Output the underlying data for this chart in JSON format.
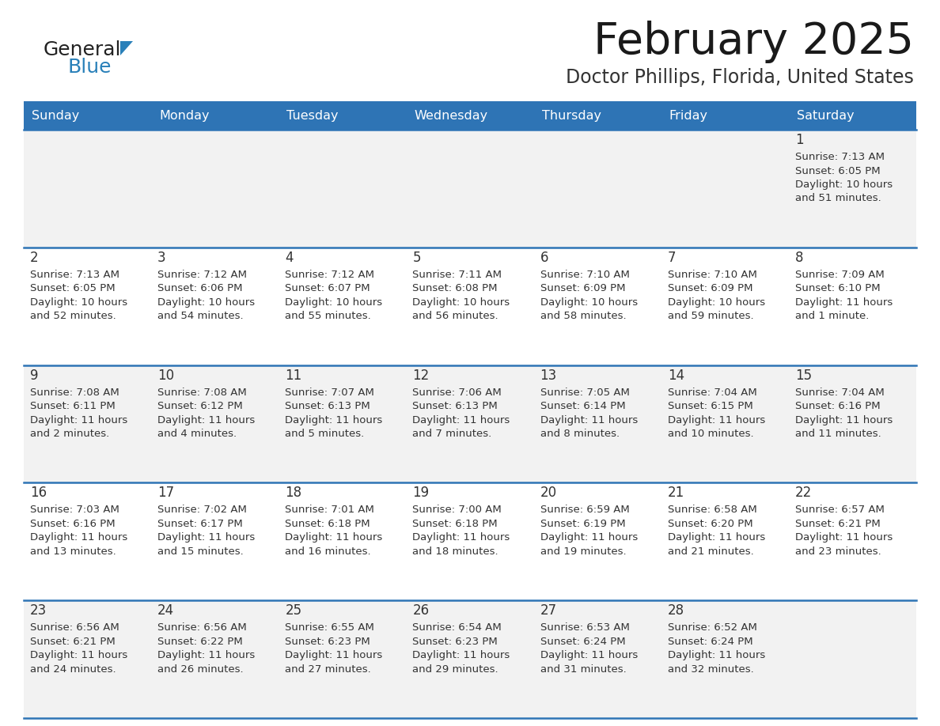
{
  "title": "February 2025",
  "subtitle": "Doctor Phillips, Florida, United States",
  "header_color": "#2E74B5",
  "header_text_color": "#FFFFFF",
  "row_bg_even": "#F2F2F2",
  "row_bg_odd": "#FFFFFF",
  "border_color": "#2E74B5",
  "text_color": "#333333",
  "days_of_week": [
    "Sunday",
    "Monday",
    "Tuesday",
    "Wednesday",
    "Thursday",
    "Friday",
    "Saturday"
  ],
  "logo_color1": "#222222",
  "logo_color2": "#2980B9",
  "calendar_data": [
    [
      null,
      null,
      null,
      null,
      null,
      null,
      {
        "day": "1",
        "sunrise": "7:13 AM",
        "sunset": "6:05 PM",
        "daylight": "10 hours\nand 51 minutes."
      }
    ],
    [
      {
        "day": "2",
        "sunrise": "7:13 AM",
        "sunset": "6:05 PM",
        "daylight": "10 hours\nand 52 minutes."
      },
      {
        "day": "3",
        "sunrise": "7:12 AM",
        "sunset": "6:06 PM",
        "daylight": "10 hours\nand 54 minutes."
      },
      {
        "day": "4",
        "sunrise": "7:12 AM",
        "sunset": "6:07 PM",
        "daylight": "10 hours\nand 55 minutes."
      },
      {
        "day": "5",
        "sunrise": "7:11 AM",
        "sunset": "6:08 PM",
        "daylight": "10 hours\nand 56 minutes."
      },
      {
        "day": "6",
        "sunrise": "7:10 AM",
        "sunset": "6:09 PM",
        "daylight": "10 hours\nand 58 minutes."
      },
      {
        "day": "7",
        "sunrise": "7:10 AM",
        "sunset": "6:09 PM",
        "daylight": "10 hours\nand 59 minutes."
      },
      {
        "day": "8",
        "sunrise": "7:09 AM",
        "sunset": "6:10 PM",
        "daylight": "11 hours\nand 1 minute."
      }
    ],
    [
      {
        "day": "9",
        "sunrise": "7:08 AM",
        "sunset": "6:11 PM",
        "daylight": "11 hours\nand 2 minutes."
      },
      {
        "day": "10",
        "sunrise": "7:08 AM",
        "sunset": "6:12 PM",
        "daylight": "11 hours\nand 4 minutes."
      },
      {
        "day": "11",
        "sunrise": "7:07 AM",
        "sunset": "6:13 PM",
        "daylight": "11 hours\nand 5 minutes."
      },
      {
        "day": "12",
        "sunrise": "7:06 AM",
        "sunset": "6:13 PM",
        "daylight": "11 hours\nand 7 minutes."
      },
      {
        "day": "13",
        "sunrise": "7:05 AM",
        "sunset": "6:14 PM",
        "daylight": "11 hours\nand 8 minutes."
      },
      {
        "day": "14",
        "sunrise": "7:04 AM",
        "sunset": "6:15 PM",
        "daylight": "11 hours\nand 10 minutes."
      },
      {
        "day": "15",
        "sunrise": "7:04 AM",
        "sunset": "6:16 PM",
        "daylight": "11 hours\nand 11 minutes."
      }
    ],
    [
      {
        "day": "16",
        "sunrise": "7:03 AM",
        "sunset": "6:16 PM",
        "daylight": "11 hours\nand 13 minutes."
      },
      {
        "day": "17",
        "sunrise": "7:02 AM",
        "sunset": "6:17 PM",
        "daylight": "11 hours\nand 15 minutes."
      },
      {
        "day": "18",
        "sunrise": "7:01 AM",
        "sunset": "6:18 PM",
        "daylight": "11 hours\nand 16 minutes."
      },
      {
        "day": "19",
        "sunrise": "7:00 AM",
        "sunset": "6:18 PM",
        "daylight": "11 hours\nand 18 minutes."
      },
      {
        "day": "20",
        "sunrise": "6:59 AM",
        "sunset": "6:19 PM",
        "daylight": "11 hours\nand 19 minutes."
      },
      {
        "day": "21",
        "sunrise": "6:58 AM",
        "sunset": "6:20 PM",
        "daylight": "11 hours\nand 21 minutes."
      },
      {
        "day": "22",
        "sunrise": "6:57 AM",
        "sunset": "6:21 PM",
        "daylight": "11 hours\nand 23 minutes."
      }
    ],
    [
      {
        "day": "23",
        "sunrise": "6:56 AM",
        "sunset": "6:21 PM",
        "daylight": "11 hours\nand 24 minutes."
      },
      {
        "day": "24",
        "sunrise": "6:56 AM",
        "sunset": "6:22 PM",
        "daylight": "11 hours\nand 26 minutes."
      },
      {
        "day": "25",
        "sunrise": "6:55 AM",
        "sunset": "6:23 PM",
        "daylight": "11 hours\nand 27 minutes."
      },
      {
        "day": "26",
        "sunrise": "6:54 AM",
        "sunset": "6:23 PM",
        "daylight": "11 hours\nand 29 minutes."
      },
      {
        "day": "27",
        "sunrise": "6:53 AM",
        "sunset": "6:24 PM",
        "daylight": "11 hours\nand 31 minutes."
      },
      {
        "day": "28",
        "sunrise": "6:52 AM",
        "sunset": "6:24 PM",
        "daylight": "11 hours\nand 32 minutes."
      },
      null
    ]
  ]
}
